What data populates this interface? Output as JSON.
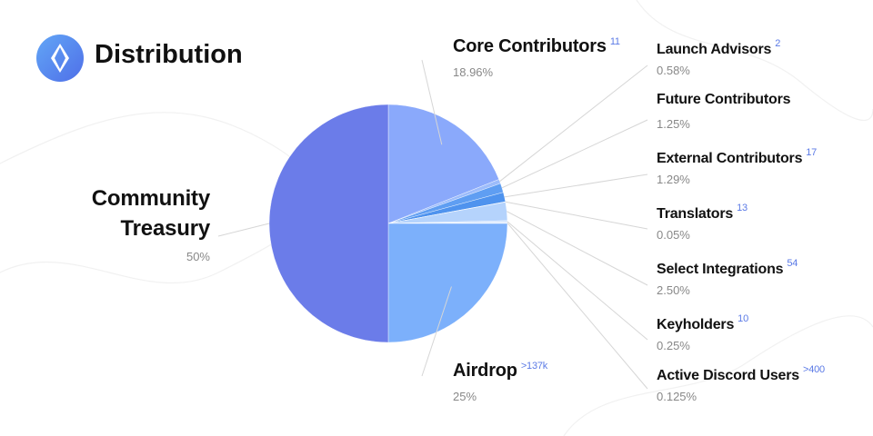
{
  "chart_data": {
    "type": "pie",
    "title": "Distribution",
    "categories": [
      "Core Contributors",
      "Launch Advisors",
      "Future Contributors",
      "External Contributors",
      "Translators",
      "Select Integrations",
      "Keyholders",
      "Active Discord Users",
      "Airdrop",
      "Community Treasury"
    ],
    "values": [
      18.96,
      0.58,
      1.25,
      1.29,
      0.05,
      2.5,
      0.25,
      0.125,
      25,
      50
    ],
    "value_labels": [
      "18.96%",
      "0.58%",
      "1.25%",
      "1.29%",
      "0.05%",
      "2.50%",
      "0.25%",
      "0.125%",
      "25%",
      "50%"
    ],
    "counts": [
      "11",
      "2",
      null,
      "17",
      "13",
      "54",
      "10",
      ">400",
      ">137k",
      null
    ],
    "colors": [
      "#8aa9fb",
      "#9cbcfb",
      "#5f9ef2",
      "#4f93ee",
      "#dce9fd",
      "#b5d3fc",
      "#cfe2fd",
      "#e6effe",
      "#7cb0fb",
      "#6b7ce9"
    ]
  }
}
